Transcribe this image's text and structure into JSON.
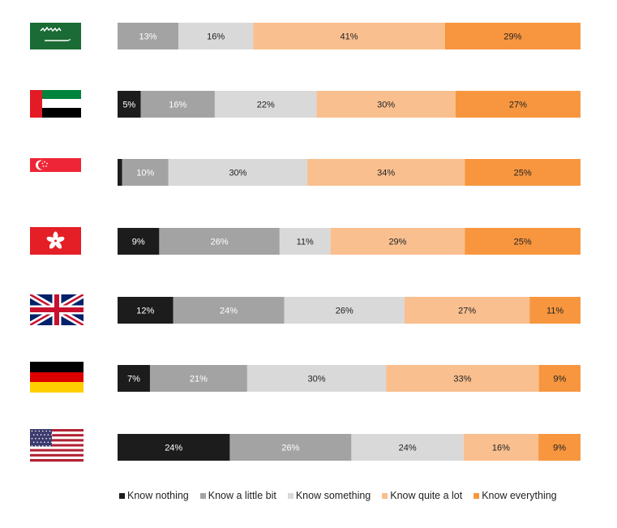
{
  "chart_data": {
    "type": "bar",
    "orientation": "horizontal",
    "stacked": true,
    "normalized": true,
    "categories": [
      "Saudi Arabia",
      "United Arab Emirates",
      "Singapore",
      "Hong Kong",
      "United Kingdom",
      "Germany",
      "United States"
    ],
    "category_icons": [
      "saudi-arabia-flag-icon",
      "uae-flag-icon",
      "singapore-flag-icon",
      "hong-kong-flag-icon",
      "uk-flag-icon",
      "germany-flag-icon",
      "usa-flag-icon"
    ],
    "series": [
      {
        "name": "Know nothing",
        "color": "#1c1c1c",
        "label_color": "#ffffff",
        "values": [
          0,
          5,
          1,
          9,
          12,
          7,
          24
        ],
        "labels": [
          "",
          "5%",
          "",
          "9%",
          "12%",
          "7%",
          "24%"
        ]
      },
      {
        "name": "Know a little bit",
        "color": "#a3a3a3",
        "label_color": "#ffffff",
        "values": [
          13,
          16,
          10,
          26,
          24,
          21,
          26
        ],
        "labels": [
          "13%",
          "16%",
          "10%",
          "26%",
          "24%",
          "21%",
          "26%"
        ]
      },
      {
        "name": "Know something",
        "color": "#d9d9d9",
        "label_color": "#222222",
        "values": [
          16,
          22,
          30,
          11,
          26,
          30,
          24
        ],
        "labels": [
          "16%",
          "22%",
          "30%",
          "11%",
          "26%",
          "30%",
          "24%"
        ]
      },
      {
        "name": "Know quite a lot",
        "color": "#f9bf8f",
        "label_color": "#222222",
        "values": [
          41,
          30,
          34,
          29,
          27,
          33,
          16
        ],
        "labels": [
          "41%",
          "30%",
          "34%",
          "29%",
          "27%",
          "33%",
          "16%"
        ]
      },
      {
        "name": "Know everything",
        "color": "#f7963f",
        "label_color": "#222222",
        "values": [
          29,
          27,
          25,
          25,
          11,
          9,
          9
        ],
        "labels": [
          "29%",
          "27%",
          "25%",
          "25%",
          "11%",
          "9%",
          "9%"
        ]
      }
    ],
    "legend_position": "bottom",
    "grid": false
  }
}
